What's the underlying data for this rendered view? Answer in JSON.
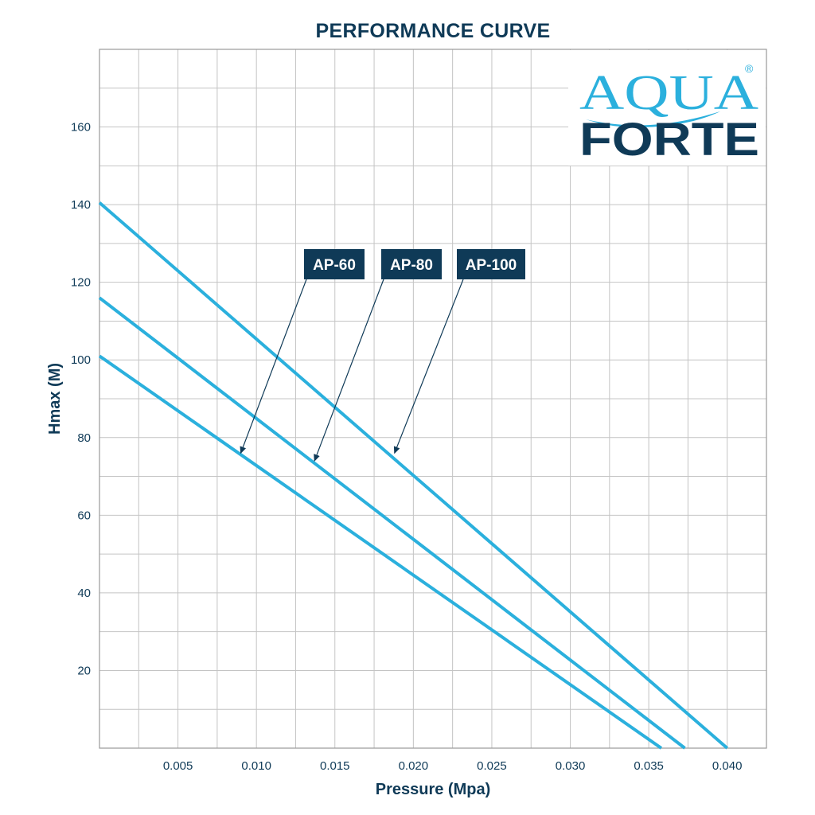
{
  "chart_data": {
    "type": "line",
    "title": "PERFORMANCE CURVE",
    "xlabel": "Pressure (Mpa)",
    "ylabel": "Hmax (M)",
    "xlim": [
      0,
      0.0425
    ],
    "ylim": [
      0,
      180
    ],
    "x_ticks": [
      "0.005",
      "0.010",
      "0.015",
      "0.020",
      "0.025",
      "0.030",
      "0.035",
      "0.040"
    ],
    "y_ticks": [
      "20",
      "40",
      "60",
      "80",
      "100",
      "120",
      "140",
      "160"
    ],
    "grid": true,
    "series": [
      {
        "name": "AP-60",
        "x": [
          0,
          0.0358
        ],
        "y": [
          101,
          0
        ]
      },
      {
        "name": "AP-80",
        "x": [
          0,
          0.0373
        ],
        "y": [
          116,
          0
        ]
      },
      {
        "name": "AP-100",
        "x": [
          0,
          0.04
        ],
        "y": [
          140.5,
          0
        ]
      }
    ],
    "annotations": [
      {
        "label": "AP-60",
        "points_to_x": 0.009,
        "points_to_y": 76
      },
      {
        "label": "AP-80",
        "points_to_x": 0.0137,
        "points_to_y": 74
      },
      {
        "label": "AP-100",
        "points_to_x": 0.0188,
        "points_to_y": 76
      }
    ],
    "colors": {
      "line": "#2bb0dd",
      "text": "#0f3a57",
      "grid": "#c4c4c4",
      "callout_bg": "#0f3a57"
    }
  },
  "logo": {
    "line1": "AQUA",
    "line2": "FORTE",
    "mark": "®"
  }
}
